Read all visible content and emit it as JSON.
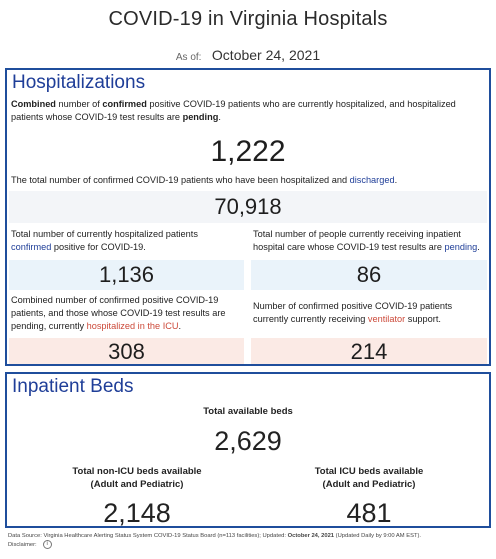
{
  "header": {
    "title": "COVID-19 in Virginia Hospitals",
    "as_of_label": "As of:",
    "as_of_date": "October 24, 2021"
  },
  "hospitalizations": {
    "title": "Hospitalizations",
    "combined": {
      "desc_1": "Combined",
      "desc_2": " number of ",
      "desc_3": "confirmed",
      "desc_4": " positive COVID-19 patients who are currently hospitalized, and hospitalized patients whose COVID-19 test results are ",
      "desc_5": "pending",
      "desc_6": ".",
      "value": "1,222"
    },
    "discharged": {
      "desc_1": "The total number of confirmed COVID-19 patients who have been hospitalized and ",
      "desc_2": "discharged",
      "desc_3": ".",
      "value": "70,918"
    },
    "confirmed": {
      "desc_1": "Total number of currently hospitalized patients ",
      "desc_2": "confirmed",
      "desc_3": " positive for COVID-19.",
      "value": "1,136"
    },
    "pending": {
      "desc_1": "Total number of people currently receiving inpatient hospital care whose COVID-19 test results are ",
      "desc_2": "pending",
      "desc_3": ".",
      "value": "86"
    },
    "icu": {
      "desc_1": "Combined number of confirmed positive COVID-19 patients, and those whose COVID-19 test results are pending, currently ",
      "desc_2": "hospitalized in the ICU",
      "desc_3": ".",
      "value": "308"
    },
    "ventilator": {
      "desc_1": "Number of confirmed positive COVID-19 patients currently currently receiving ",
      "desc_2": "ventilator",
      "desc_3": " support.",
      "value": "214"
    }
  },
  "beds": {
    "title": "Inpatient Beds",
    "total_label": "Total available beds",
    "total_value": "2,629",
    "non_icu_label_1": "Total non-ICU beds available",
    "non_icu_label_2": "(Adult and Pediatric)",
    "non_icu_value": "2,148",
    "icu_label_1": "Total ICU beds available",
    "icu_label_2": "(Adult and Pediatric)",
    "icu_value": "481"
  },
  "footer": {
    "source_1": "Data Source: Virginia Healthcare Alerting Status System COVID-19 Status Board (n=113 facilities); Updated: ",
    "source_date": "October 24, 2021",
    "source_2": " (Updated Daily by 9:00 AM EST).",
    "disclaimer": "Disclaimer:",
    "info_glyph": "i"
  },
  "colors": {
    "accent": "#1f3e98",
    "highlight_red": "#cc4a3a",
    "panel_border": "#1f4e9c"
  }
}
